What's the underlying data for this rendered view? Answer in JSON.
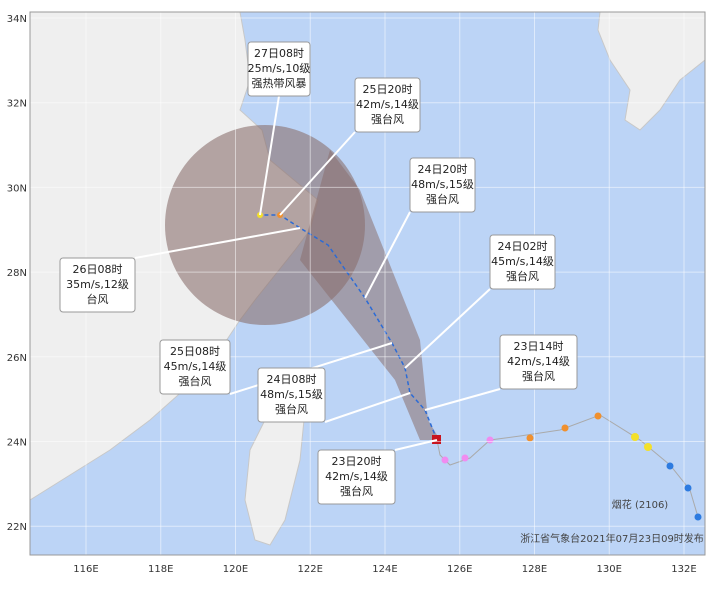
{
  "axes": {
    "lon": [
      "116E",
      "118E",
      "120E",
      "122E",
      "124E",
      "126E",
      "128E",
      "130E",
      "132E"
    ],
    "lat": [
      "34N",
      "32N",
      "30N",
      "28N",
      "26N",
      "24N",
      "22N"
    ]
  },
  "callouts": [
    {
      "time": "27日08时",
      "wind": "25m/s,10级",
      "category": "强热带风暴"
    },
    {
      "time": "25日20时",
      "wind": "42m/s,14级",
      "category": "强台风"
    },
    {
      "time": "24日20时",
      "wind": "48m/s,15级",
      "category": "强台风"
    },
    {
      "time": "24日02时",
      "wind": "45m/s,14级",
      "category": "强台风"
    },
    {
      "time": "23日14时",
      "wind": "42m/s,14级",
      "category": "强台风"
    },
    {
      "time": "26日08时",
      "wind": "35m/s,12级",
      "category": "台风"
    },
    {
      "time": "25日08时",
      "wind": "45m/s,14级",
      "category": "强台风"
    },
    {
      "time": "24日08时",
      "wind": "48m/s,15级",
      "category": "强台风"
    },
    {
      "time": "23日20时",
      "wind": "42m/s,14级",
      "category": "强台风"
    }
  ],
  "typhoon": "烟花 (2106)",
  "issuer": "浙江省气象台2021年07月23日09时发布"
}
